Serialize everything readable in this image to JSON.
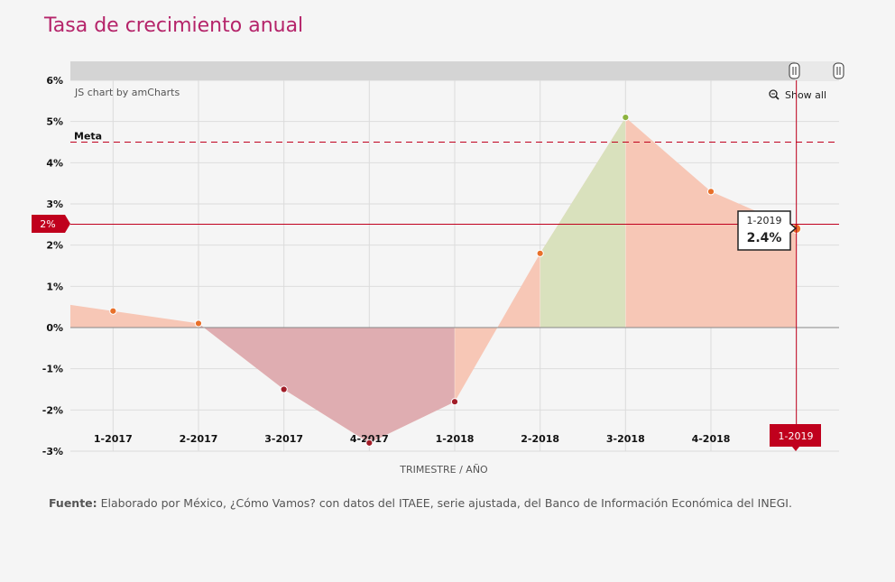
{
  "page": {
    "title": "Tasa de crecimiento anual",
    "source_label": "Fuente:",
    "source_text": "Elaborado por México, ¿Cómo Vamos? con datos del ITAEE, serie ajustada, del Banco de Información Económica del INEGI."
  },
  "widgets": {
    "credit": "JS chart by amCharts",
    "show_all": "Show all",
    "show_all_icon": "zoom-out-icon",
    "scrollbar_handle_icon": "grip-icon"
  },
  "cursor": {
    "y_label": "2%",
    "x_label": "1-2019",
    "tooltip_title": "1-2019",
    "tooltip_value": "2.4%"
  },
  "colors": {
    "title": "#b5246a",
    "positive_fill": "#f7c7b6",
    "peak_fill": "#d9e1bd",
    "negative_fill": "#dfadb1",
    "point_orange": "#e8702a",
    "point_green": "#8db33f",
    "point_red": "#a11d28",
    "goal_line": "#c0001d",
    "cursor": "#c0001d"
  },
  "chart_data": {
    "type": "area",
    "categories": [
      "1-2017",
      "2-2017",
      "3-2017",
      "4-2017",
      "1-2018",
      "2-2018",
      "3-2018",
      "4-2018",
      "1-2019"
    ],
    "values": [
      0.4,
      0.1,
      -1.5,
      -2.8,
      -1.8,
      1.8,
      5.1,
      3.3,
      2.4
    ],
    "xlabel": "TRIMESTRE / AÑO",
    "ylabel": "",
    "ylim": [
      -3,
      6
    ],
    "yticks": [
      6,
      5,
      4,
      3,
      2,
      1,
      0,
      -1,
      -2,
      -3
    ],
    "ytick_labels": [
      "6%",
      "5%",
      "4%",
      "3%",
      "2%",
      "1%",
      "0%",
      "-1%",
      "-2%",
      "-3%"
    ],
    "goal_line": {
      "label": "Meta",
      "value": 4.5
    },
    "grid": true,
    "legend": "none"
  }
}
